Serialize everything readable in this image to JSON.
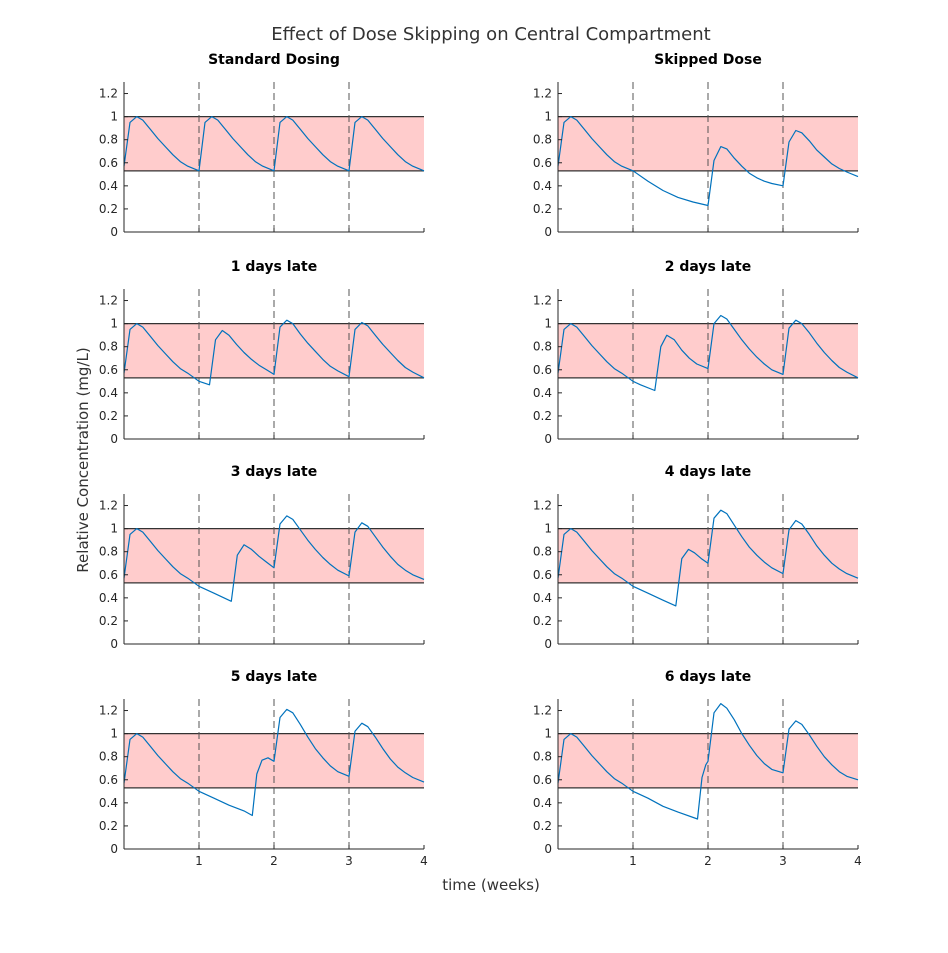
{
  "figure": {
    "title": "Effect of Dose Skipping on Central Compartment",
    "xlabel": "time (weeks)",
    "ylabel": "Relative Concentration (mg/L)"
  },
  "colors": {
    "curve": "#0072bd",
    "band_fill": "#ffcccc",
    "band_edge": "#333333",
    "dose_line": "#555555",
    "axis": "#262626"
  },
  "chart_data": [
    {
      "type": "line",
      "title": "Standard Dosing",
      "xlim": [
        0,
        4
      ],
      "ylim": [
        0,
        1.3
      ],
      "xticks": [
        1,
        2,
        3,
        4
      ],
      "yticks": [
        0,
        0.2,
        0.4,
        0.6,
        0.8,
        1,
        1.2
      ],
      "band": [
        0.53,
        1.0
      ],
      "dose_lines": [
        1,
        2,
        3
      ],
      "show_xticklabels": false,
      "x": [
        0.0,
        0.08,
        0.17,
        0.25,
        0.35,
        0.45,
        0.55,
        0.65,
        0.75,
        0.85,
        1.0,
        1.08,
        1.17,
        1.25,
        1.35,
        1.45,
        1.55,
        1.65,
        1.75,
        1.85,
        2.0,
        2.08,
        2.17,
        2.25,
        2.35,
        2.45,
        2.55,
        2.65,
        2.75,
        2.85,
        3.0,
        3.08,
        3.17,
        3.25,
        3.35,
        3.45,
        3.55,
        3.65,
        3.75,
        3.85,
        4.0
      ],
      "y": [
        0.57,
        0.95,
        1.0,
        0.97,
        0.89,
        0.81,
        0.74,
        0.67,
        0.61,
        0.57,
        0.53,
        0.95,
        1.0,
        0.97,
        0.89,
        0.81,
        0.74,
        0.67,
        0.61,
        0.57,
        0.53,
        0.95,
        1.0,
        0.97,
        0.89,
        0.81,
        0.74,
        0.67,
        0.61,
        0.57,
        0.53,
        0.95,
        1.0,
        0.97,
        0.89,
        0.81,
        0.74,
        0.67,
        0.61,
        0.57,
        0.53
      ]
    },
    {
      "type": "line",
      "title": "Skipped Dose",
      "xlim": [
        0,
        4
      ],
      "ylim": [
        0,
        1.3
      ],
      "xticks": [
        1,
        2,
        3,
        4
      ],
      "yticks": [
        0,
        0.2,
        0.4,
        0.6,
        0.8,
        1,
        1.2
      ],
      "band": [
        0.53,
        1.0
      ],
      "dose_lines": [
        1,
        2,
        3
      ],
      "show_xticklabels": false,
      "x": [
        0.0,
        0.08,
        0.17,
        0.25,
        0.35,
        0.45,
        0.55,
        0.65,
        0.75,
        0.85,
        1.0,
        1.2,
        1.4,
        1.6,
        1.8,
        2.0,
        2.08,
        2.17,
        2.25,
        2.35,
        2.45,
        2.55,
        2.65,
        2.75,
        2.85,
        3.0,
        3.08,
        3.17,
        3.25,
        3.35,
        3.45,
        3.55,
        3.65,
        3.75,
        3.85,
        4.0
      ],
      "y": [
        0.57,
        0.95,
        1.0,
        0.97,
        0.89,
        0.81,
        0.74,
        0.67,
        0.61,
        0.57,
        0.53,
        0.44,
        0.36,
        0.3,
        0.26,
        0.23,
        0.62,
        0.74,
        0.72,
        0.64,
        0.57,
        0.51,
        0.47,
        0.44,
        0.42,
        0.4,
        0.78,
        0.88,
        0.86,
        0.79,
        0.71,
        0.65,
        0.59,
        0.55,
        0.52,
        0.48
      ]
    },
    {
      "type": "line",
      "title": "1 days late",
      "xlim": [
        0,
        4
      ],
      "ylim": [
        0,
        1.3
      ],
      "xticks": [
        1,
        2,
        3,
        4
      ],
      "yticks": [
        0,
        0.2,
        0.4,
        0.6,
        0.8,
        1,
        1.2
      ],
      "band": [
        0.53,
        1.0
      ],
      "dose_lines": [
        1,
        2,
        3
      ],
      "show_xticklabels": false,
      "x": [
        0.0,
        0.08,
        0.17,
        0.25,
        0.35,
        0.45,
        0.55,
        0.65,
        0.75,
        0.85,
        1.0,
        1.14,
        1.22,
        1.31,
        1.4,
        1.5,
        1.6,
        1.7,
        1.8,
        1.9,
        2.0,
        2.08,
        2.17,
        2.25,
        2.35,
        2.45,
        2.55,
        2.65,
        2.75,
        2.85,
        3.0,
        3.08,
        3.17,
        3.25,
        3.35,
        3.45,
        3.55,
        3.65,
        3.75,
        3.85,
        4.0
      ],
      "y": [
        0.57,
        0.95,
        1.0,
        0.97,
        0.89,
        0.81,
        0.74,
        0.67,
        0.61,
        0.57,
        0.5,
        0.47,
        0.86,
        0.94,
        0.9,
        0.82,
        0.75,
        0.69,
        0.64,
        0.6,
        0.56,
        0.97,
        1.03,
        1.0,
        0.91,
        0.83,
        0.76,
        0.69,
        0.63,
        0.59,
        0.54,
        0.95,
        1.01,
        0.98,
        0.9,
        0.82,
        0.75,
        0.68,
        0.62,
        0.58,
        0.53
      ]
    },
    {
      "type": "line",
      "title": "2 days late",
      "xlim": [
        0,
        4
      ],
      "ylim": [
        0,
        1.3
      ],
      "xticks": [
        1,
        2,
        3,
        4
      ],
      "yticks": [
        0,
        0.2,
        0.4,
        0.6,
        0.8,
        1,
        1.2
      ],
      "band": [
        0.53,
        1.0
      ],
      "dose_lines": [
        1,
        2,
        3
      ],
      "show_xticklabels": false,
      "x": [
        0.0,
        0.08,
        0.17,
        0.25,
        0.35,
        0.45,
        0.55,
        0.65,
        0.75,
        0.85,
        1.0,
        1.1,
        1.29,
        1.37,
        1.45,
        1.55,
        1.65,
        1.75,
        1.85,
        2.0,
        2.08,
        2.17,
        2.25,
        2.35,
        2.45,
        2.55,
        2.65,
        2.75,
        2.85,
        3.0,
        3.08,
        3.17,
        3.25,
        3.35,
        3.45,
        3.55,
        3.65,
        3.75,
        3.85,
        4.0
      ],
      "y": [
        0.57,
        0.95,
        1.0,
        0.97,
        0.89,
        0.81,
        0.74,
        0.67,
        0.61,
        0.57,
        0.5,
        0.47,
        0.42,
        0.8,
        0.9,
        0.86,
        0.77,
        0.7,
        0.65,
        0.61,
        1.0,
        1.07,
        1.04,
        0.95,
        0.86,
        0.78,
        0.71,
        0.65,
        0.6,
        0.56,
        0.96,
        1.03,
        1.0,
        0.92,
        0.83,
        0.75,
        0.68,
        0.62,
        0.58,
        0.53
      ]
    },
    {
      "type": "line",
      "title": "3 days late",
      "xlim": [
        0,
        4
      ],
      "ylim": [
        0,
        1.3
      ],
      "xticks": [
        1,
        2,
        3,
        4
      ],
      "yticks": [
        0,
        0.2,
        0.4,
        0.6,
        0.8,
        1,
        1.2
      ],
      "band": [
        0.53,
        1.0
      ],
      "dose_lines": [
        1,
        2,
        3
      ],
      "show_xticklabels": false,
      "x": [
        0.0,
        0.08,
        0.17,
        0.25,
        0.35,
        0.45,
        0.55,
        0.65,
        0.75,
        0.85,
        1.0,
        1.2,
        1.43,
        1.51,
        1.6,
        1.7,
        1.8,
        1.9,
        2.0,
        2.08,
        2.17,
        2.25,
        2.35,
        2.45,
        2.55,
        2.65,
        2.75,
        2.85,
        3.0,
        3.08,
        3.17,
        3.25,
        3.35,
        3.45,
        3.55,
        3.65,
        3.75,
        3.85,
        4.0
      ],
      "y": [
        0.57,
        0.95,
        1.0,
        0.97,
        0.89,
        0.81,
        0.74,
        0.67,
        0.61,
        0.57,
        0.5,
        0.44,
        0.37,
        0.77,
        0.86,
        0.82,
        0.76,
        0.71,
        0.66,
        1.04,
        1.11,
        1.08,
        0.99,
        0.9,
        0.82,
        0.75,
        0.69,
        0.64,
        0.59,
        0.97,
        1.05,
        1.02,
        0.93,
        0.84,
        0.76,
        0.69,
        0.64,
        0.6,
        0.56
      ]
    },
    {
      "type": "line",
      "title": "4 days late",
      "xlim": [
        0,
        4
      ],
      "ylim": [
        0,
        1.3
      ],
      "xticks": [
        1,
        2,
        3,
        4
      ],
      "yticks": [
        0,
        0.2,
        0.4,
        0.6,
        0.8,
        1,
        1.2
      ],
      "band": [
        0.53,
        1.0
      ],
      "dose_lines": [
        1,
        2,
        3
      ],
      "show_xticklabels": false,
      "x": [
        0.0,
        0.08,
        0.17,
        0.25,
        0.35,
        0.45,
        0.55,
        0.65,
        0.75,
        0.85,
        1.0,
        1.2,
        1.4,
        1.57,
        1.65,
        1.74,
        1.82,
        1.91,
        2.0,
        2.08,
        2.17,
        2.25,
        2.35,
        2.45,
        2.55,
        2.65,
        2.75,
        2.85,
        3.0,
        3.08,
        3.17,
        3.25,
        3.35,
        3.45,
        3.55,
        3.65,
        3.75,
        3.85,
        4.0
      ],
      "y": [
        0.57,
        0.95,
        1.0,
        0.97,
        0.89,
        0.81,
        0.74,
        0.67,
        0.61,
        0.57,
        0.5,
        0.44,
        0.38,
        0.33,
        0.74,
        0.82,
        0.79,
        0.74,
        0.7,
        1.09,
        1.16,
        1.13,
        1.03,
        0.93,
        0.84,
        0.77,
        0.71,
        0.66,
        0.61,
        0.99,
        1.07,
        1.04,
        0.95,
        0.85,
        0.77,
        0.7,
        0.65,
        0.61,
        0.57
      ]
    },
    {
      "type": "line",
      "title": "5 days late",
      "xlim": [
        0,
        4
      ],
      "ylim": [
        0,
        1.3
      ],
      "xticks": [
        1,
        2,
        3,
        4
      ],
      "yticks": [
        0,
        0.2,
        0.4,
        0.6,
        0.8,
        1,
        1.2
      ],
      "band": [
        0.53,
        1.0
      ],
      "dose_lines": [
        1,
        2,
        3
      ],
      "show_xticklabels": true,
      "x": [
        0.0,
        0.08,
        0.17,
        0.25,
        0.35,
        0.45,
        0.55,
        0.65,
        0.75,
        0.85,
        1.0,
        1.2,
        1.4,
        1.6,
        1.71,
        1.77,
        1.84,
        1.92,
        2.0,
        2.08,
        2.17,
        2.25,
        2.35,
        2.45,
        2.55,
        2.65,
        2.75,
        2.85,
        3.0,
        3.08,
        3.17,
        3.25,
        3.35,
        3.45,
        3.55,
        3.65,
        3.75,
        3.85,
        4.0
      ],
      "y": [
        0.57,
        0.95,
        1.0,
        0.97,
        0.89,
        0.81,
        0.74,
        0.67,
        0.61,
        0.57,
        0.5,
        0.44,
        0.38,
        0.33,
        0.29,
        0.65,
        0.77,
        0.79,
        0.76,
        1.14,
        1.21,
        1.18,
        1.08,
        0.97,
        0.87,
        0.79,
        0.72,
        0.67,
        0.63,
        1.02,
        1.09,
        1.06,
        0.97,
        0.87,
        0.78,
        0.71,
        0.66,
        0.62,
        0.58
      ]
    },
    {
      "type": "line",
      "title": "6 days late",
      "xlim": [
        0,
        4
      ],
      "ylim": [
        0,
        1.3
      ],
      "xticks": [
        1,
        2,
        3,
        4
      ],
      "yticks": [
        0,
        0.2,
        0.4,
        0.6,
        0.8,
        1,
        1.2
      ],
      "band": [
        0.53,
        1.0
      ],
      "dose_lines": [
        1,
        2,
        3
      ],
      "show_xticklabels": true,
      "x": [
        0.0,
        0.08,
        0.17,
        0.25,
        0.35,
        0.45,
        0.55,
        0.65,
        0.75,
        0.85,
        1.0,
        1.2,
        1.4,
        1.6,
        1.86,
        1.92,
        1.97,
        2.0,
        2.08,
        2.17,
        2.25,
        2.35,
        2.45,
        2.55,
        2.65,
        2.75,
        2.85,
        3.0,
        3.08,
        3.17,
        3.25,
        3.35,
        3.45,
        3.55,
        3.65,
        3.75,
        3.85,
        4.0
      ],
      "y": [
        0.57,
        0.95,
        1.0,
        0.97,
        0.89,
        0.81,
        0.74,
        0.67,
        0.61,
        0.57,
        0.5,
        0.44,
        0.37,
        0.32,
        0.26,
        0.62,
        0.73,
        0.76,
        1.18,
        1.26,
        1.22,
        1.12,
        1.0,
        0.9,
        0.81,
        0.74,
        0.69,
        0.66,
        1.04,
        1.11,
        1.08,
        0.99,
        0.89,
        0.8,
        0.73,
        0.67,
        0.63,
        0.6
      ]
    }
  ]
}
